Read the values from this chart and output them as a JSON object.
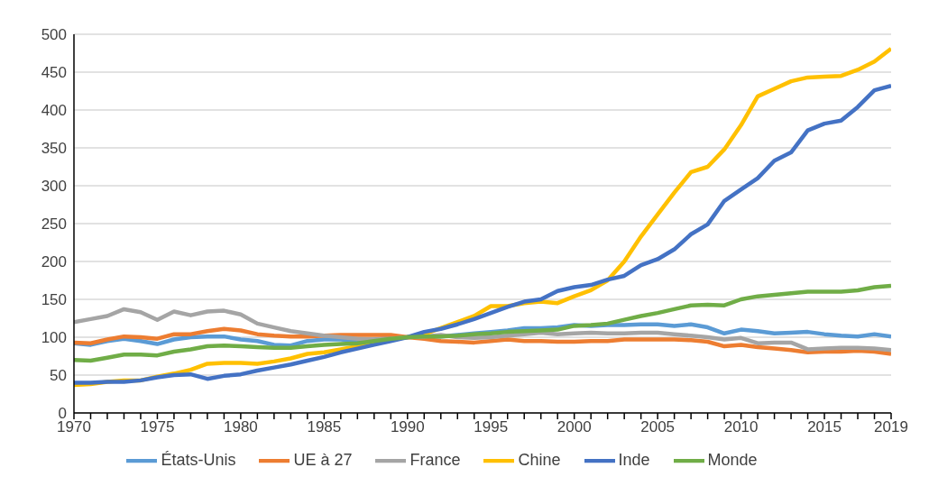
{
  "chart_data": {
    "type": "line",
    "x": [
      1970,
      1971,
      1972,
      1973,
      1974,
      1975,
      1976,
      1977,
      1978,
      1979,
      1980,
      1981,
      1982,
      1983,
      1984,
      1985,
      1986,
      1987,
      1988,
      1989,
      1990,
      1991,
      1992,
      1993,
      1994,
      1995,
      1996,
      1997,
      1998,
      1999,
      2000,
      2001,
      2002,
      2003,
      2004,
      2005,
      2006,
      2007,
      2008,
      2009,
      2010,
      2011,
      2012,
      2013,
      2014,
      2015,
      2016,
      2017,
      2018,
      2019
    ],
    "series": [
      {
        "name": "États-Unis",
        "color": "#5b9bd5",
        "values": [
          92,
          90,
          95,
          98,
          95,
          91,
          97,
          100,
          101,
          101,
          97,
          95,
          90,
          89,
          95,
          97,
          97,
          95,
          97,
          99,
          100,
          101,
          101,
          103,
          105,
          107,
          109,
          112,
          112,
          113,
          116,
          115,
          116,
          116,
          117,
          117,
          115,
          117,
          113,
          105,
          110,
          108,
          105,
          106,
          107,
          104,
          102,
          101,
          104,
          101
        ]
      },
      {
        "name": "UE à 27",
        "color": "#ed7d31",
        "values": [
          93,
          92,
          97,
          101,
          100,
          98,
          104,
          104,
          108,
          111,
          109,
          104,
          102,
          101,
          101,
          102,
          103,
          103,
          103,
          103,
          100,
          98,
          95,
          94,
          93,
          95,
          97,
          95,
          95,
          94,
          94,
          95,
          95,
          97,
          97,
          97,
          97,
          96,
          94,
          88,
          90,
          87,
          85,
          83,
          80,
          81,
          81,
          82,
          81,
          78
        ]
      },
      {
        "name": "France",
        "color": "#a5a5a5",
        "values": [
          120,
          124,
          128,
          137,
          133,
          123,
          134,
          129,
          134,
          135,
          130,
          118,
          113,
          108,
          105,
          102,
          100,
          98,
          97,
          98,
          100,
          101,
          103,
          100,
          99,
          100,
          102,
          104,
          106,
          104,
          105,
          106,
          105,
          105,
          106,
          106,
          104,
          102,
          100,
          97,
          99,
          92,
          93,
          93,
          84,
          85,
          86,
          86,
          85,
          83
        ]
      },
      {
        "name": "Chine",
        "color": "#ffc000",
        "values": [
          37,
          38,
          41,
          43,
          43,
          48,
          52,
          57,
          65,
          66,
          66,
          65,
          68,
          72,
          78,
          80,
          84,
          88,
          93,
          97,
          100,
          104,
          112,
          120,
          128,
          141,
          141,
          145,
          147,
          145,
          154,
          162,
          175,
          200,
          233,
          262,
          291,
          318,
          325,
          348,
          380,
          418,
          428,
          438,
          443,
          444,
          445,
          453,
          464,
          481
        ]
      },
      {
        "name": "Inde",
        "color": "#4472c4",
        "values": [
          40,
          40,
          41,
          41,
          43,
          47,
          50,
          51,
          45,
          49,
          51,
          56,
          60,
          64,
          69,
          74,
          80,
          85,
          90,
          95,
          100,
          107,
          111,
          117,
          124,
          132,
          140,
          147,
          150,
          161,
          166,
          169,
          176,
          181,
          195,
          203,
          216,
          236,
          249,
          280,
          295,
          310,
          333,
          344,
          373,
          382,
          386,
          404,
          426,
          432
        ]
      },
      {
        "name": "Monde",
        "color": "#70ad47",
        "values": [
          70,
          69,
          73,
          77,
          77,
          76,
          81,
          84,
          88,
          89,
          88,
          87,
          86,
          86,
          88,
          90,
          91,
          92,
          95,
          98,
          100,
          101,
          101,
          102,
          104,
          105,
          107,
          108,
          109,
          110,
          115,
          116,
          118,
          123,
          128,
          132,
          137,
          142,
          143,
          142,
          150,
          154,
          156,
          158,
          160,
          160,
          160,
          162,
          166,
          168
        ]
      }
    ],
    "xlim": [
      1970,
      2019
    ],
    "xticks": [
      1970,
      {
        "value": 1971,
        "label": null
      },
      {
        "value": 1972,
        "label": null
      },
      {
        "value": 1973,
        "label": null
      },
      {
        "value": 1974,
        "label": null
      },
      1975,
      {
        "value": 1976,
        "label": null
      },
      {
        "value": 1977,
        "label": null
      },
      {
        "value": 1978,
        "label": null
      },
      {
        "value": 1979,
        "label": null
      },
      1980,
      {
        "value": 1981,
        "label": null
      },
      {
        "value": 1982,
        "label": null
      },
      {
        "value": 1983,
        "label": null
      },
      {
        "value": 1984,
        "label": null
      },
      1985,
      {
        "value": 1986,
        "label": null
      },
      {
        "value": 1987,
        "label": null
      },
      {
        "value": 1988,
        "label": null
      },
      {
        "value": 1989,
        "label": null
      },
      1990,
      {
        "value": 1991,
        "label": null
      },
      {
        "value": 1992,
        "label": null
      },
      {
        "value": 1993,
        "label": null
      },
      {
        "value": 1994,
        "label": null
      },
      1995,
      {
        "value": 1996,
        "label": null
      },
      {
        "value": 1997,
        "label": null
      },
      {
        "value": 1998,
        "label": null
      },
      {
        "value": 1999,
        "label": null
      },
      2000,
      {
        "value": 2001,
        "label": null
      },
      {
        "value": 2002,
        "label": null
      },
      {
        "value": 2003,
        "label": null
      },
      {
        "value": 2004,
        "label": null
      },
      2005,
      {
        "value": 2006,
        "label": null
      },
      {
        "value": 2007,
        "label": null
      },
      {
        "value": 2008,
        "label": null
      },
      {
        "value": 2009,
        "label": null
      },
      2010,
      {
        "value": 2011,
        "label": null
      },
      {
        "value": 2012,
        "label": null
      },
      {
        "value": 2013,
        "label": null
      },
      {
        "value": 2014,
        "label": null
      },
      2015,
      {
        "value": 2016,
        "label": null
      },
      {
        "value": 2017,
        "label": null
      },
      {
        "value": 2018,
        "label": null
      },
      2019
    ],
    "ylim": [
      0,
      500
    ],
    "yticks": [
      0,
      50,
      100,
      150,
      200,
      250,
      300,
      350,
      400,
      450,
      500
    ],
    "grid": "y",
    "legend": "bottom",
    "marker": "none",
    "line_style": "solid"
  }
}
